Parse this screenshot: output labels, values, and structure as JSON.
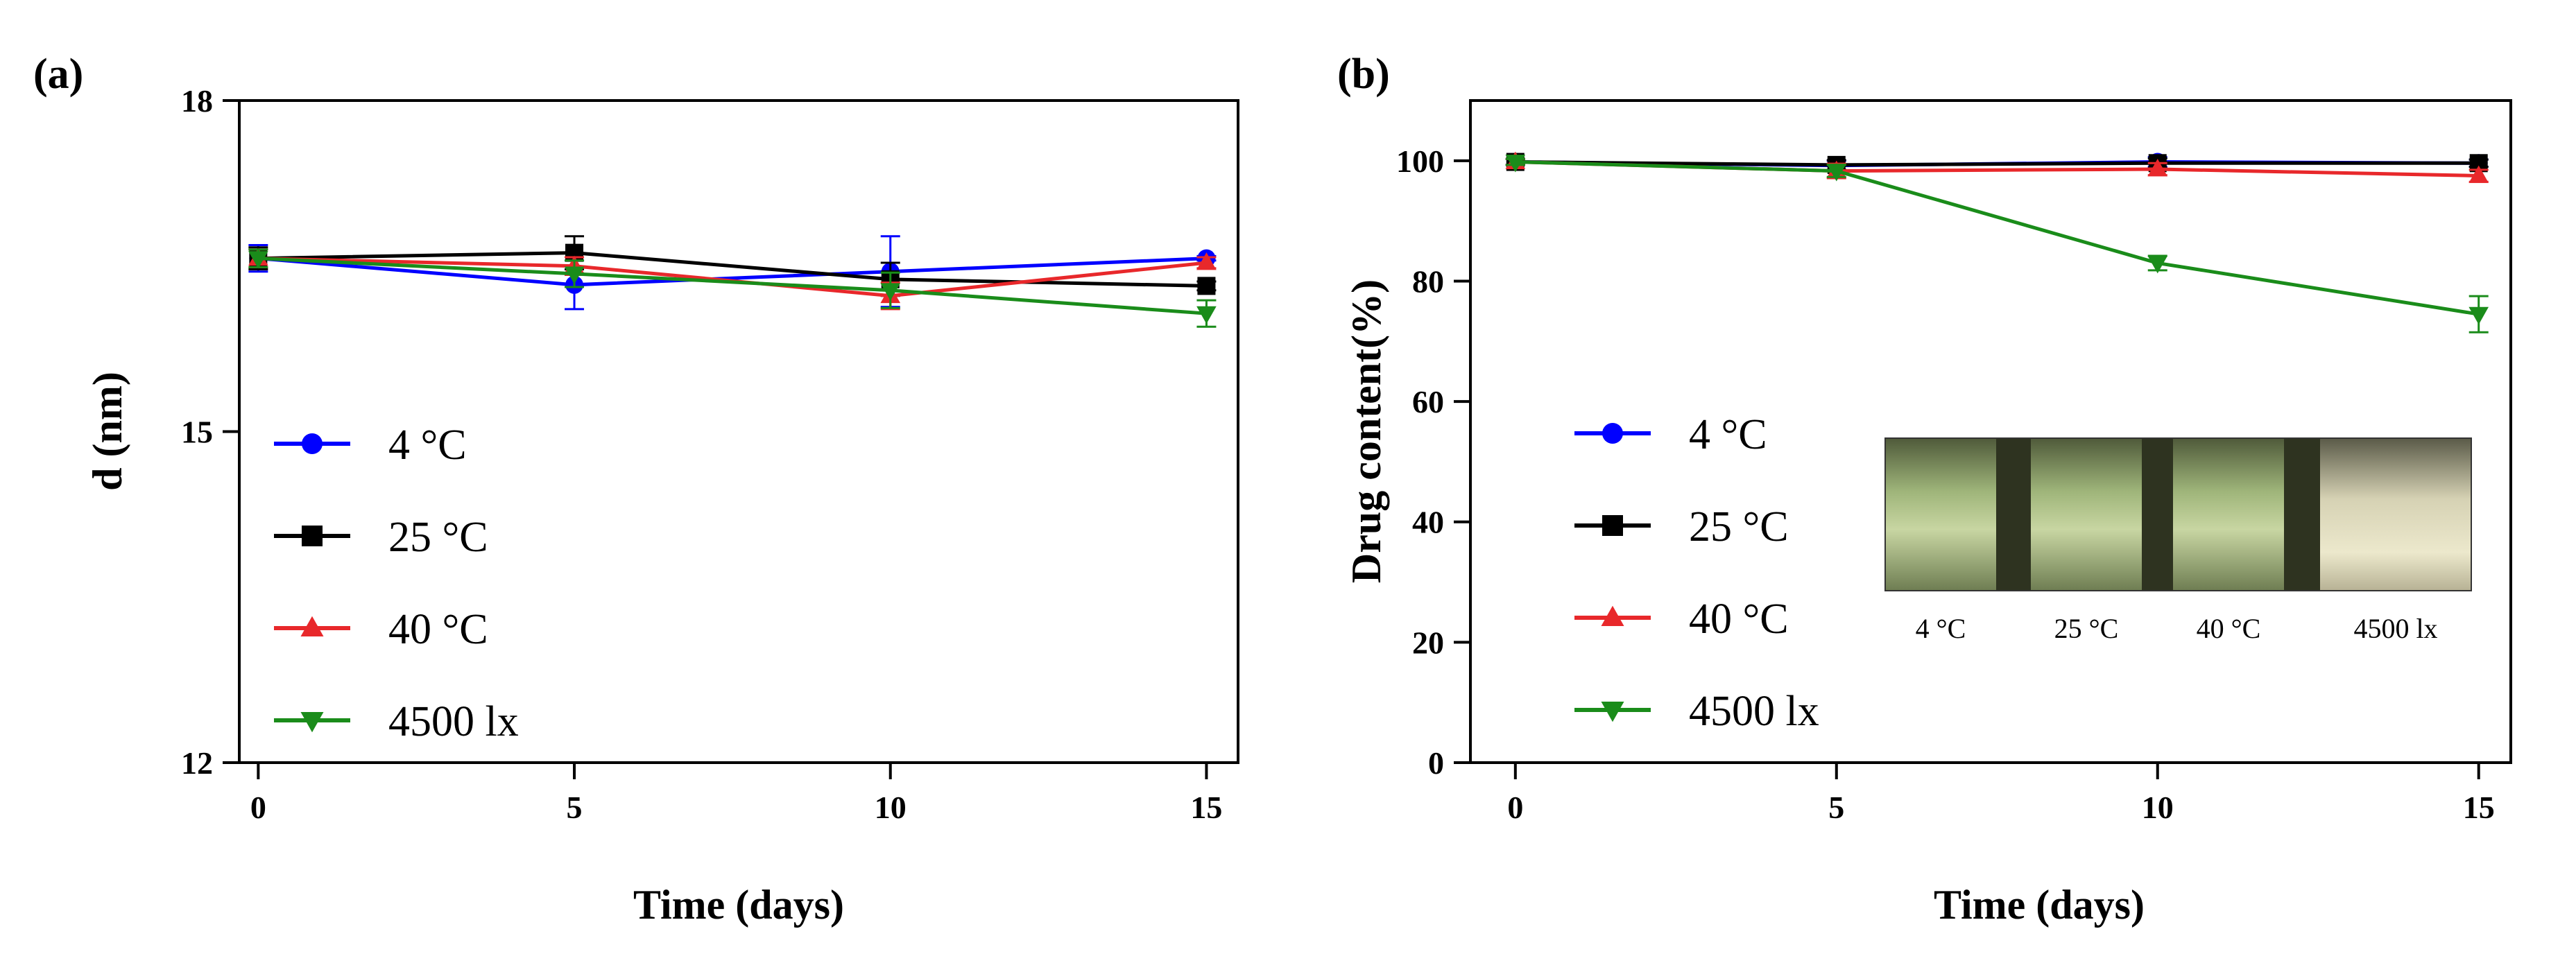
{
  "chart_data": [
    {
      "panel": "(a)",
      "type": "line",
      "xlabel": "Time (days)",
      "ylabel": "d (nm)",
      "xlim": [
        0,
        15
      ],
      "ylim": [
        12,
        18
      ],
      "xticks": [
        0,
        5,
        10,
        15
      ],
      "yticks": [
        12,
        15,
        18
      ],
      "x": [
        0,
        5,
        10,
        15
      ],
      "legend_position": "lower-left",
      "grid": false,
      "series": [
        {
          "name": "4 °C",
          "color": "#0000ff",
          "marker": "circle",
          "values": [
            16.57,
            16.33,
            16.45,
            16.57
          ],
          "errors": [
            0.12,
            0.22,
            0.32,
            0.02
          ]
        },
        {
          "name": "25 °C",
          "color": "#000000",
          "marker": "square",
          "values": [
            16.57,
            16.62,
            16.38,
            16.32
          ],
          "errors": [
            0.1,
            0.15,
            0.15,
            0.04
          ]
        },
        {
          "name": "40 °C",
          "color": "#e8282b",
          "marker": "triangle-up",
          "values": [
            16.57,
            16.5,
            16.23,
            16.53
          ],
          "errors": [
            0.08,
            0.08,
            0.12,
            0.05
          ]
        },
        {
          "name": "4500 lx",
          "color": "#1a8c1a",
          "marker": "triangle-down",
          "values": [
            16.57,
            16.43,
            16.28,
            16.07
          ],
          "errors": [
            0.08,
            0.12,
            0.16,
            0.12
          ]
        }
      ]
    },
    {
      "panel": "(b)",
      "type": "line",
      "xlabel": "Time (days)",
      "ylabel": "Drug content(%)",
      "xlim": [
        0,
        15
      ],
      "ylim": [
        0,
        110
      ],
      "xticks": [
        0,
        5,
        10,
        15
      ],
      "yticks": [
        0,
        20,
        40,
        60,
        80,
        100
      ],
      "x": [
        0,
        5,
        10,
        15
      ],
      "legend_position": "lower-left",
      "grid": false,
      "series": [
        {
          "name": "4 °C",
          "color": "#0000ff",
          "marker": "circle",
          "values": [
            99.8,
            99.2,
            99.8,
            99.6
          ],
          "errors": [
            0.5,
            0.8,
            0.8,
            0.6
          ]
        },
        {
          "name": "25 °C",
          "color": "#000000",
          "marker": "square",
          "values": [
            99.8,
            99.3,
            99.6,
            99.6
          ],
          "errors": [
            0.5,
            0.8,
            0.8,
            0.6
          ]
        },
        {
          "name": "40 °C",
          "color": "#e8282b",
          "marker": "triangle-up",
          "values": [
            99.8,
            98.3,
            98.6,
            97.5
          ],
          "errors": [
            0.5,
            1.2,
            1.0,
            1.0
          ]
        },
        {
          "name": "4500 lx",
          "color": "#1a8c1a",
          "marker": "triangle-down",
          "values": [
            99.8,
            98.3,
            83.0,
            74.5
          ],
          "errors": [
            0.5,
            1.0,
            1.2,
            3.0
          ]
        }
      ],
      "inset_photo_captions": [
        "4 °C",
        "25 °C",
        "40 °C",
        "4500 lx"
      ]
    }
  ]
}
